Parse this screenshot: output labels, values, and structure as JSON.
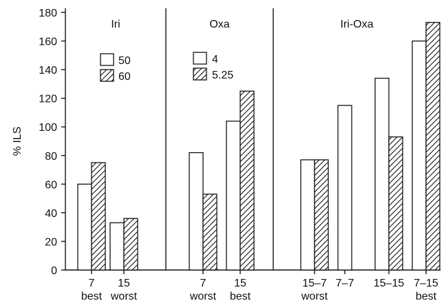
{
  "chart_data": {
    "type": "bar",
    "ylabel": "% ILS",
    "ylim": [
      0,
      180
    ],
    "yticks": [
      0,
      20,
      40,
      60,
      80,
      100,
      120,
      140,
      160,
      180
    ],
    "panels": [
      {
        "title": "Iri",
        "legend": [
          {
            "label": "50",
            "pattern": "open"
          },
          {
            "label": "60",
            "pattern": "hatched"
          }
        ],
        "groups": [
          {
            "label": "7",
            "sublabel": "best",
            "bars": [
              {
                "value": 60,
                "pattern": "open"
              },
              {
                "value": 75,
                "pattern": "hatched"
              }
            ]
          },
          {
            "label": "15",
            "sublabel": "worst",
            "bars": [
              {
                "value": 33,
                "pattern": "open"
              },
              {
                "value": 36,
                "pattern": "hatched"
              }
            ]
          }
        ]
      },
      {
        "title": "Oxa",
        "legend": [
          {
            "label": "4",
            "pattern": "open"
          },
          {
            "label": "5.25",
            "pattern": "hatched"
          }
        ],
        "groups": [
          {
            "label": "7",
            "sublabel": "worst",
            "bars": [
              {
                "value": 82,
                "pattern": "open"
              },
              {
                "value": 53,
                "pattern": "hatched"
              }
            ]
          },
          {
            "label": "15",
            "sublabel": "best",
            "bars": [
              {
                "value": 104,
                "pattern": "open"
              },
              {
                "value": 125,
                "pattern": "hatched"
              }
            ]
          }
        ]
      },
      {
        "title": "Iri-Oxa",
        "legend": [],
        "groups": [
          {
            "label": "15–7",
            "sublabel": "worst",
            "bars": [
              {
                "value": 77,
                "pattern": "open"
              },
              {
                "value": 77,
                "pattern": "hatched"
              }
            ]
          },
          {
            "label": "7–7",
            "sublabel": "",
            "bars": [
              {
                "value": 115,
                "pattern": "open"
              }
            ]
          },
          {
            "label": "15–15",
            "sublabel": "",
            "bars": [
              {
                "value": 134,
                "pattern": "open"
              },
              {
                "value": 93,
                "pattern": "hatched"
              }
            ]
          },
          {
            "label": "7–15",
            "sublabel": "best",
            "bars": [
              {
                "value": 160,
                "pattern": "open"
              },
              {
                "value": 173,
                "pattern": "hatched"
              }
            ]
          }
        ]
      }
    ]
  }
}
